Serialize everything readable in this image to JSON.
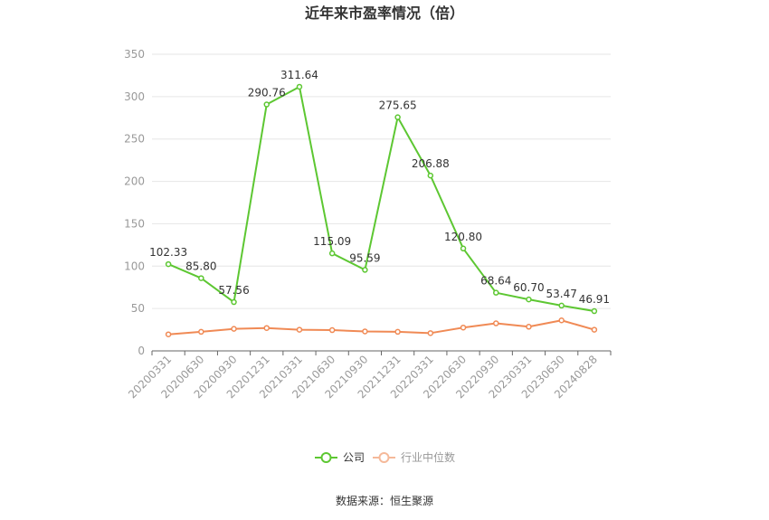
{
  "chart_data": {
    "type": "line",
    "title": "近年来市盈率情况（倍）",
    "categories": [
      "20200331",
      "20200630",
      "20200930",
      "20201231",
      "20210331",
      "20210630",
      "20210930",
      "20211231",
      "20220331",
      "20220630",
      "20220930",
      "20230331",
      "20230630",
      "20240828"
    ],
    "series": [
      {
        "name": "公司",
        "color": "#5dc732",
        "values": [
          102.33,
          85.8,
          57.56,
          290.76,
          311.64,
          115.09,
          95.59,
          275.65,
          206.88,
          120.8,
          68.64,
          60.7,
          53.47,
          46.91
        ],
        "labels": [
          "102.33",
          "85.80",
          "57.56",
          "290.76",
          "311.64",
          "115.09",
          "95.59",
          "275.65",
          "206.88",
          "120.80",
          "68.64",
          "60.70",
          "53.47",
          "46.91"
        ]
      },
      {
        "name": "行业中位数",
        "color": "#f08a55",
        "values": [
          19.5,
          22.5,
          26.0,
          27.0,
          25.0,
          24.5,
          23.0,
          22.5,
          21.0,
          27.5,
          32.5,
          28.5,
          36.0,
          25.0
        ]
      }
    ],
    "ylim": [
      0,
      350
    ],
    "yticks": [
      "0",
      "50",
      "100",
      "150",
      "200",
      "250",
      "300",
      "350"
    ],
    "grid": true,
    "legend": "bottom-center",
    "source": "数据来源：恒生聚源"
  }
}
